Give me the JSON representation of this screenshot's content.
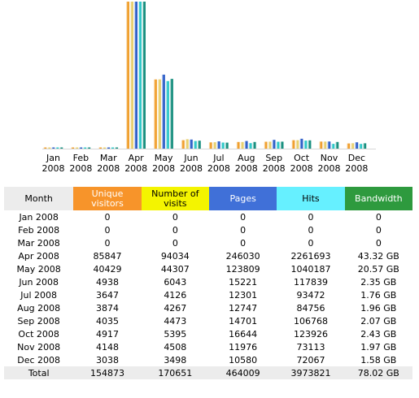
{
  "chart_data": {
    "type": "bar",
    "categories": [
      "Jan 2008",
      "Feb 2008",
      "Mar 2008",
      "Apr 2008",
      "May 2008",
      "Jun 2008",
      "Jul 2008",
      "Aug 2008",
      "Sep 2008",
      "Oct 2008",
      "Nov 2008",
      "Dec 2008"
    ],
    "x_labels": [
      [
        "Jan",
        "2008"
      ],
      [
        "Feb",
        "2008"
      ],
      [
        "Mar",
        "2008"
      ],
      [
        "Apr",
        "2008"
      ],
      [
        "May",
        "2008"
      ],
      [
        "Jun",
        "2008"
      ],
      [
        "Jul",
        "2008"
      ],
      [
        "Aug",
        "2008"
      ],
      [
        "Sep",
        "2008"
      ],
      [
        "Oct",
        "2008"
      ],
      [
        "Nov",
        "2008"
      ],
      [
        "Dec",
        "2008"
      ]
    ],
    "series": [
      {
        "key": "unique",
        "color": "#f0a030",
        "values": [
          0,
          0,
          0,
          85847,
          40429,
          4938,
          3647,
          3874,
          4035,
          4917,
          4148,
          3038
        ]
      },
      {
        "key": "visits",
        "color": "#e8d070",
        "values": [
          0,
          0,
          0,
          94034,
          44307,
          6043,
          4126,
          4267,
          4473,
          5395,
          4508,
          3498
        ]
      },
      {
        "key": "pages",
        "color": "#3060c8",
        "values": [
          0,
          0,
          0,
          246030,
          123809,
          15221,
          12301,
          12747,
          14701,
          16644,
          11976,
          10580
        ]
      },
      {
        "key": "hits",
        "color": "#30c8c8",
        "values": [
          0,
          0,
          0,
          2261693,
          1040187,
          117839,
          93472,
          84756,
          106768,
          123926,
          73113,
          72067
        ]
      },
      {
        "key": "bandwidth",
        "color": "#1a9080",
        "values": [
          0,
          0,
          0,
          43.32,
          20.57,
          2.35,
          1.76,
          1.96,
          2.07,
          2.43,
          1.97,
          1.58
        ]
      }
    ],
    "legend": "none",
    "grid": false
  },
  "table": {
    "headers": {
      "month": "Month",
      "unique": [
        "Unique",
        "visitors"
      ],
      "visits": [
        "Number of",
        "visits"
      ],
      "pages": "Pages",
      "hits": "Hits",
      "bandwidth": "Bandwidth"
    },
    "rows": [
      {
        "month": "Jan 2008",
        "unique": "0",
        "visits": "0",
        "pages": "0",
        "hits": "0",
        "bandwidth": "0"
      },
      {
        "month": "Feb 2008",
        "unique": "0",
        "visits": "0",
        "pages": "0",
        "hits": "0",
        "bandwidth": "0"
      },
      {
        "month": "Mar 2008",
        "unique": "0",
        "visits": "0",
        "pages": "0",
        "hits": "0",
        "bandwidth": "0"
      },
      {
        "month": "Apr 2008",
        "unique": "85847",
        "visits": "94034",
        "pages": "246030",
        "hits": "2261693",
        "bandwidth": "43.32 GB"
      },
      {
        "month": "May 2008",
        "unique": "40429",
        "visits": "44307",
        "pages": "123809",
        "hits": "1040187",
        "bandwidth": "20.57 GB"
      },
      {
        "month": "Jun 2008",
        "unique": "4938",
        "visits": "6043",
        "pages": "15221",
        "hits": "117839",
        "bandwidth": "2.35 GB"
      },
      {
        "month": "Jul 2008",
        "unique": "3647",
        "visits": "4126",
        "pages": "12301",
        "hits": "93472",
        "bandwidth": "1.76 GB"
      },
      {
        "month": "Aug 2008",
        "unique": "3874",
        "visits": "4267",
        "pages": "12747",
        "hits": "84756",
        "bandwidth": "1.96 GB"
      },
      {
        "month": "Sep 2008",
        "unique": "4035",
        "visits": "4473",
        "pages": "14701",
        "hits": "106768",
        "bandwidth": "2.07 GB"
      },
      {
        "month": "Oct 2008",
        "unique": "4917",
        "visits": "5395",
        "pages": "16644",
        "hits": "123926",
        "bandwidth": "2.43 GB"
      },
      {
        "month": "Nov 2008",
        "unique": "4148",
        "visits": "4508",
        "pages": "11976",
        "hits": "73113",
        "bandwidth": "1.97 GB"
      },
      {
        "month": "Dec 2008",
        "unique": "3038",
        "visits": "3498",
        "pages": "10580",
        "hits": "72067",
        "bandwidth": "1.58 GB"
      }
    ],
    "total": {
      "month": "Total",
      "unique": "154873",
      "visits": "170651",
      "pages": "464009",
      "hits": "3973821",
      "bandwidth": "78.02 GB"
    }
  }
}
